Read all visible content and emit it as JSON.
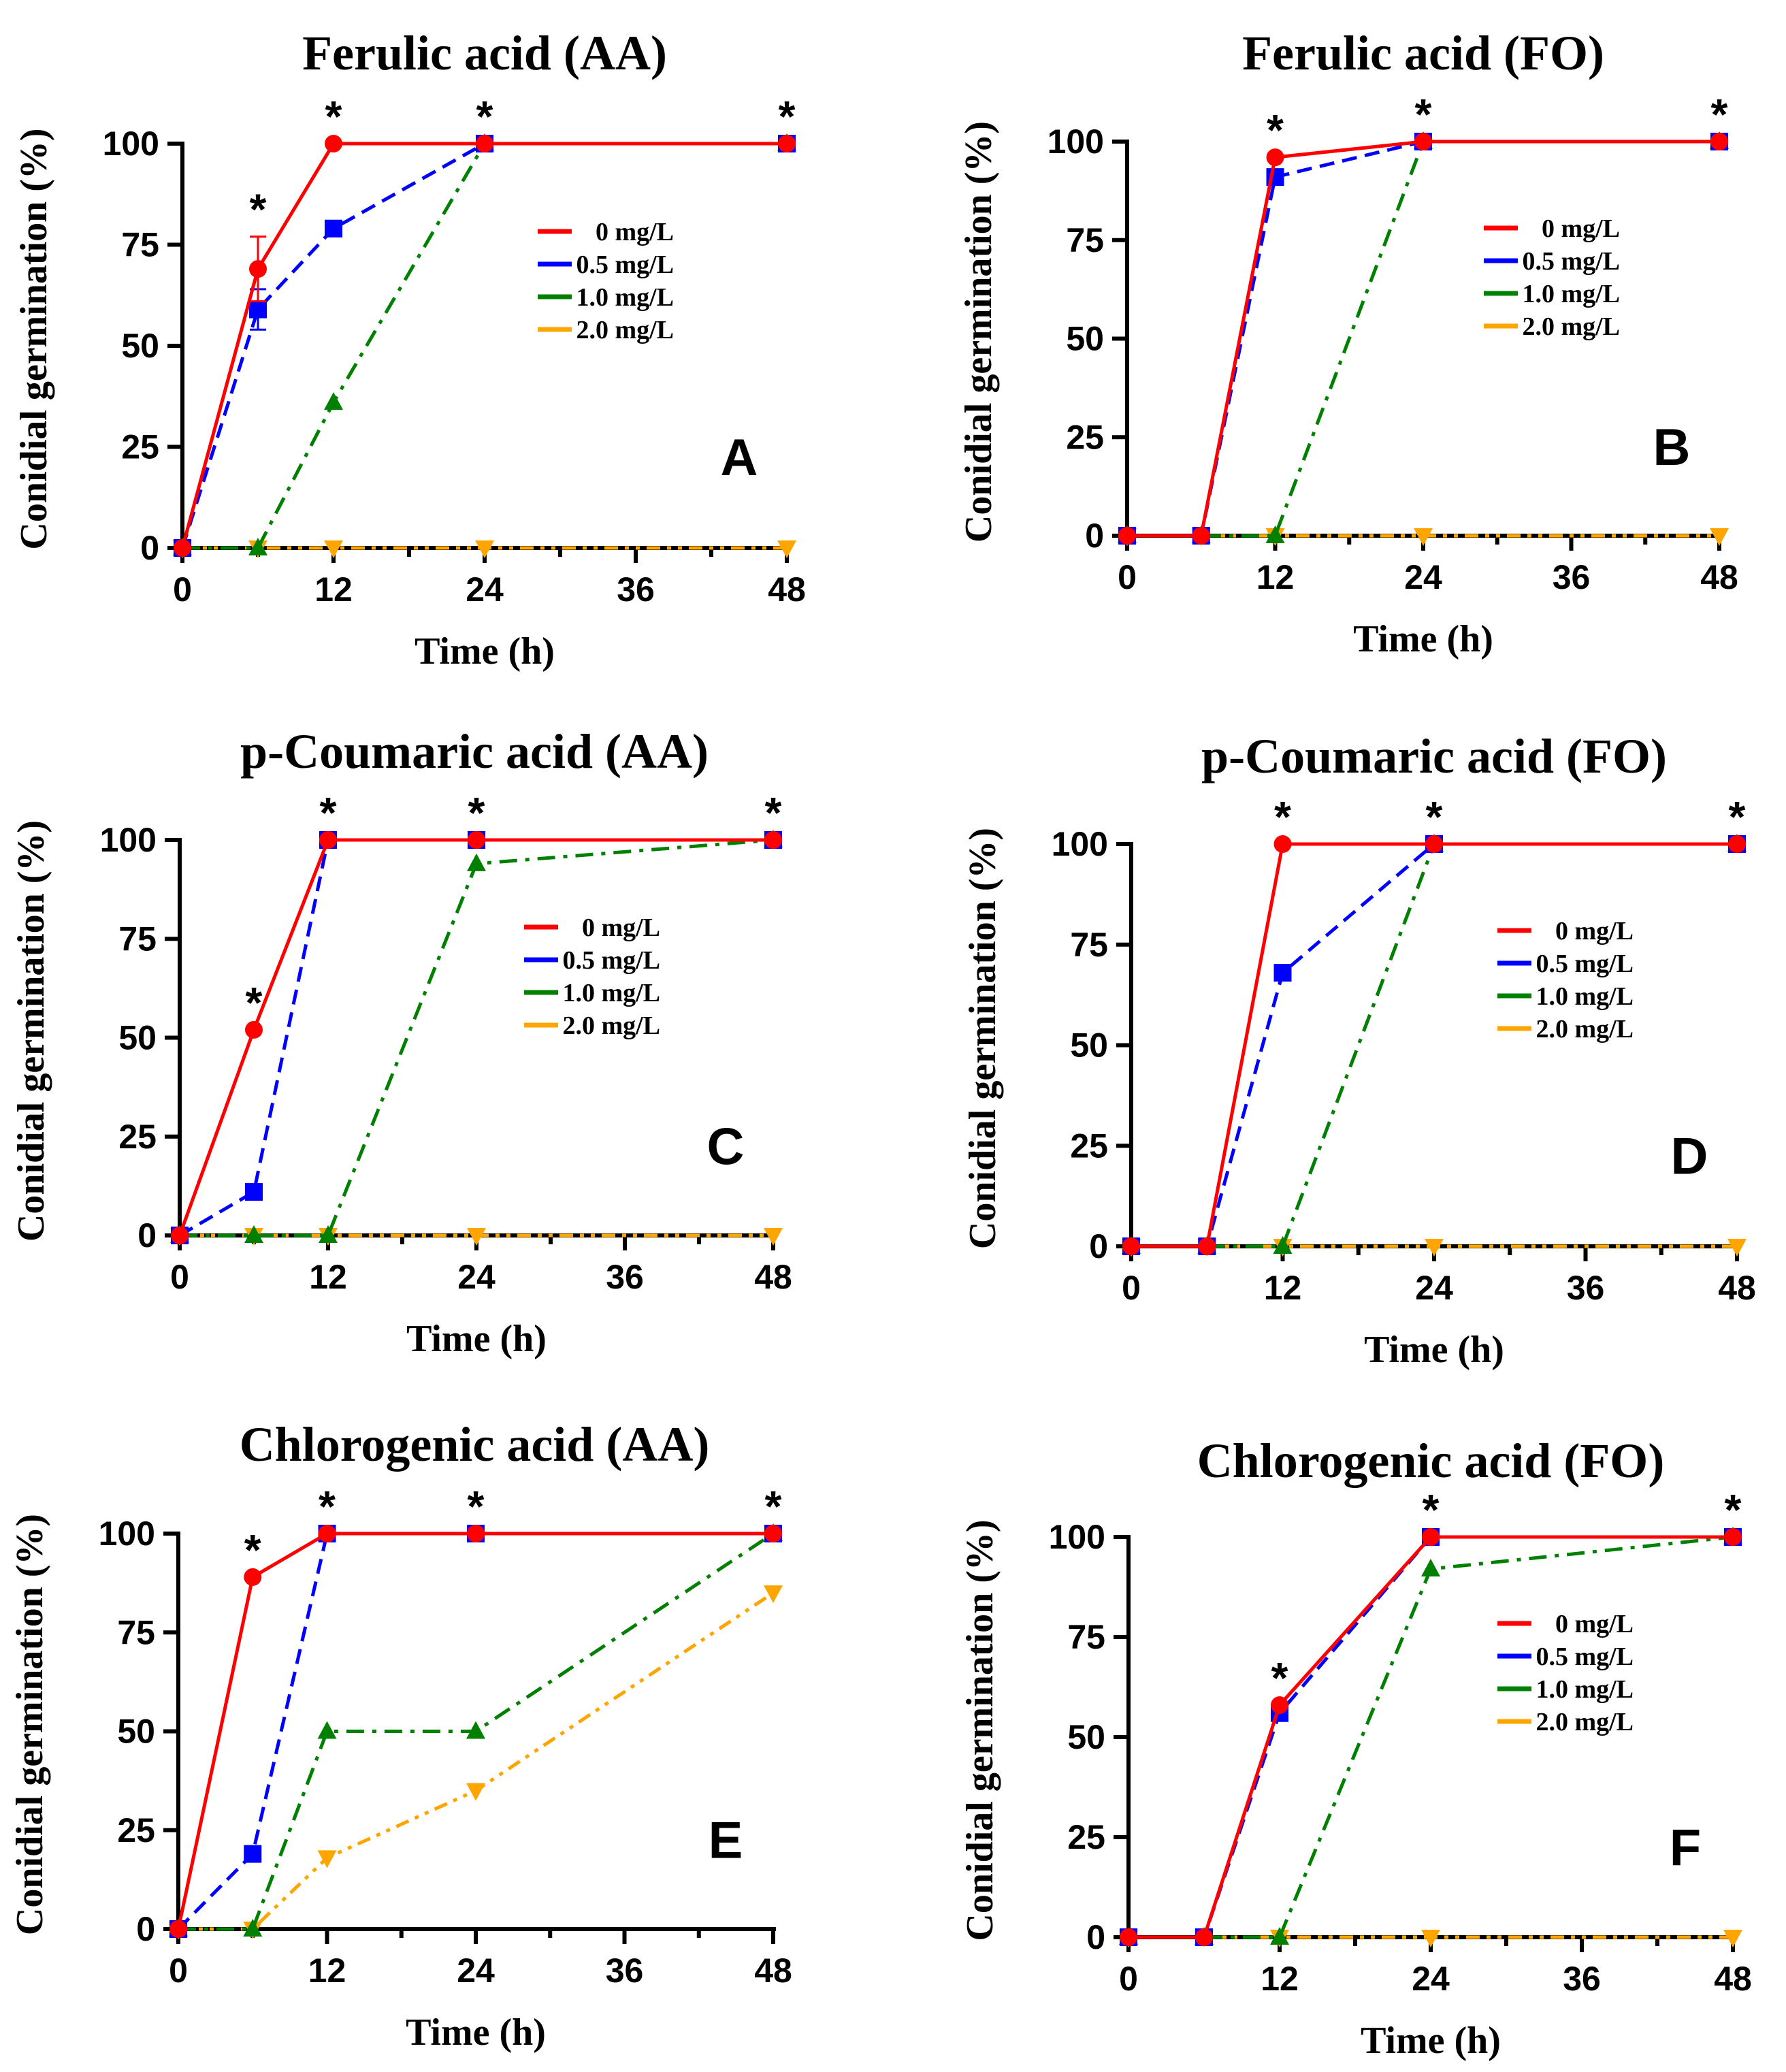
{
  "figure": {
    "legend_labels": [
      "0 mg/L",
      "0.5 mg/L",
      "1.0 mg/L",
      "2.0 mg/L"
    ],
    "series_colors": [
      "#ff0000",
      "#0000ff",
      "#008000",
      "#ffa500"
    ],
    "axis_color": "#000000"
  },
  "chart_data": [
    {
      "type": "line",
      "panel": "A",
      "title": "Ferulic acid (AA)",
      "xlabel": "Time (h)",
      "ylabel": "Conidial germination (%)",
      "xlim": [
        0,
        48
      ],
      "ylim": [
        0,
        100
      ],
      "xticks": [
        0,
        12,
        24,
        36,
        48
      ],
      "yticks": [
        0,
        25,
        50,
        75,
        100
      ],
      "x": [
        0,
        6,
        12,
        24,
        48
      ],
      "legend_position": "upper-right",
      "significance_marks_at_x": [
        6,
        12,
        24,
        48
      ],
      "series": [
        {
          "name": "0 mg/L",
          "values": [
            0,
            69,
            100,
            100,
            100
          ],
          "error": [
            0,
            8,
            0,
            0,
            0
          ],
          "marker": "circle",
          "line": "solid"
        },
        {
          "name": "0.5 mg/L",
          "values": [
            0,
            59,
            79,
            100,
            100
          ],
          "error": [
            0,
            5,
            0,
            0,
            0
          ],
          "marker": "square",
          "line": "dashed"
        },
        {
          "name": "1.0 mg/L",
          "values": [
            0,
            0,
            36,
            100,
            100
          ],
          "marker": "triangle-up",
          "line": "dash-dot"
        },
        {
          "name": "2.0 mg/L",
          "values": [
            0,
            0,
            0,
            0,
            0
          ],
          "marker": "triangle-down",
          "line": "dash-dot-dot"
        }
      ]
    },
    {
      "type": "line",
      "panel": "B",
      "title": "Ferulic acid (FO)",
      "xlabel": "Time (h)",
      "ylabel": "Conidial germination (%)",
      "xlim": [
        0,
        48
      ],
      "ylim": [
        0,
        100
      ],
      "xticks": [
        0,
        12,
        24,
        36,
        48
      ],
      "yticks": [
        0,
        25,
        50,
        75,
        100
      ],
      "x": [
        0,
        6,
        12,
        24,
        48
      ],
      "legend_position": "upper-right",
      "significance_marks_at_x": [
        12,
        24,
        48
      ],
      "series": [
        {
          "name": "0 mg/L",
          "values": [
            0,
            0,
            96,
            100,
            100
          ],
          "marker": "circle",
          "line": "solid"
        },
        {
          "name": "0.5 mg/L",
          "values": [
            0,
            0,
            91,
            100,
            100
          ],
          "marker": "square",
          "line": "dashed"
        },
        {
          "name": "1.0 mg/L",
          "values": [
            0,
            0,
            0,
            100,
            100
          ],
          "marker": "triangle-up",
          "line": "dash-dot"
        },
        {
          "name": "2.0 mg/L",
          "values": [
            0,
            0,
            0,
            0,
            0
          ],
          "marker": "triangle-down",
          "line": "dash-dot-dot"
        }
      ]
    },
    {
      "type": "line",
      "panel": "C",
      "title": "p-Coumaric acid (AA)",
      "xlabel": "Time (h)",
      "ylabel": "Conidial germination (%)",
      "xlim": [
        0,
        48
      ],
      "ylim": [
        0,
        100
      ],
      "xticks": [
        0,
        12,
        24,
        36,
        48
      ],
      "yticks": [
        0,
        25,
        50,
        75,
        100
      ],
      "x": [
        0,
        6,
        12,
        24,
        48
      ],
      "legend_position": "upper-right",
      "significance_marks_at_x": [
        6,
        12,
        24,
        48
      ],
      "series": [
        {
          "name": "0 mg/L",
          "values": [
            0,
            52,
            100,
            100,
            100
          ],
          "marker": "circle",
          "line": "solid"
        },
        {
          "name": "0.5 mg/L",
          "values": [
            0,
            11,
            100,
            100,
            100
          ],
          "marker": "square",
          "line": "dashed"
        },
        {
          "name": "1.0 mg/L",
          "values": [
            0,
            0,
            0,
            94,
            100
          ],
          "marker": "triangle-up",
          "line": "dash-dot"
        },
        {
          "name": "2.0 mg/L",
          "values": [
            0,
            0,
            0,
            0,
            0
          ],
          "marker": "triangle-down",
          "line": "dash-dot-dot"
        }
      ]
    },
    {
      "type": "line",
      "panel": "D",
      "title": "p-Coumaric acid (FO)",
      "xlabel": "Time (h)",
      "ylabel": "Conidial germination (%)",
      "xlim": [
        0,
        48
      ],
      "ylim": [
        0,
        100
      ],
      "xticks": [
        0,
        12,
        24,
        36,
        48
      ],
      "yticks": [
        0,
        25,
        50,
        75,
        100
      ],
      "x": [
        0,
        6,
        12,
        24,
        48
      ],
      "legend_position": "upper-right",
      "significance_marks_at_x": [
        12,
        24,
        48
      ],
      "series": [
        {
          "name": "0 mg/L",
          "values": [
            0,
            0,
            100,
            100,
            100
          ],
          "marker": "circle",
          "line": "solid"
        },
        {
          "name": "0.5 mg/L",
          "values": [
            0,
            0,
            68,
            100,
            100
          ],
          "marker": "square",
          "line": "dashed"
        },
        {
          "name": "1.0 mg/L",
          "values": [
            0,
            0,
            0,
            100,
            100
          ],
          "marker": "triangle-up",
          "line": "dash-dot"
        },
        {
          "name": "2.0 mg/L",
          "values": [
            0,
            0,
            0,
            0,
            0
          ],
          "marker": "triangle-down",
          "line": "dash-dot-dot"
        }
      ]
    },
    {
      "type": "line",
      "panel": "E",
      "title": "Chlorogenic acid (AA)",
      "xlabel": "Time (h)",
      "ylabel": "Conidial germination (%)",
      "xlim": [
        0,
        48
      ],
      "ylim": [
        0,
        100
      ],
      "xticks": [
        0,
        12,
        24,
        36,
        48
      ],
      "yticks": [
        0,
        25,
        50,
        75,
        100
      ],
      "x": [
        0,
        6,
        12,
        24,
        48
      ],
      "legend_position": "none",
      "significance_marks_at_x": [
        6,
        12,
        24,
        48
      ],
      "series": [
        {
          "name": "0 mg/L",
          "values": [
            0,
            89,
            100,
            100,
            100
          ],
          "marker": "circle",
          "line": "solid"
        },
        {
          "name": "0.5 mg/L",
          "values": [
            0,
            19,
            100,
            100,
            100
          ],
          "marker": "square",
          "line": "dashed"
        },
        {
          "name": "1.0 mg/L",
          "values": [
            0,
            0,
            50,
            50,
            100
          ],
          "marker": "triangle-up",
          "line": "dash-dot"
        },
        {
          "name": "2.0 mg/L",
          "values": [
            0,
            0,
            18,
            35,
            85
          ],
          "marker": "triangle-down",
          "line": "dash-dot-dot"
        }
      ]
    },
    {
      "type": "line",
      "panel": "F",
      "title": "Chlorogenic acid (FO)",
      "xlabel": "Time (h)",
      "ylabel": "Conidial germination (%)",
      "xlim": [
        0,
        48
      ],
      "ylim": [
        0,
        100
      ],
      "xticks": [
        0,
        12,
        24,
        36,
        48
      ],
      "yticks": [
        0,
        25,
        50,
        75,
        100
      ],
      "x": [
        0,
        6,
        12,
        24,
        48
      ],
      "legend_position": "middle-right",
      "significance_marks_at_x": [
        12,
        24,
        48
      ],
      "series": [
        {
          "name": "0 mg/L",
          "values": [
            0,
            0,
            58,
            100,
            100
          ],
          "marker": "circle",
          "line": "solid"
        },
        {
          "name": "0.5 mg/L",
          "values": [
            0,
            0,
            56,
            100,
            100
          ],
          "marker": "square",
          "line": "dashed"
        },
        {
          "name": "1.0 mg/L",
          "values": [
            0,
            0,
            0,
            92,
            100
          ],
          "marker": "triangle-up",
          "line": "dash-dot"
        },
        {
          "name": "2.0 mg/L",
          "values": [
            0,
            0,
            0,
            0,
            0
          ],
          "marker": "triangle-down",
          "line": "dash-dot-dot"
        }
      ]
    }
  ]
}
